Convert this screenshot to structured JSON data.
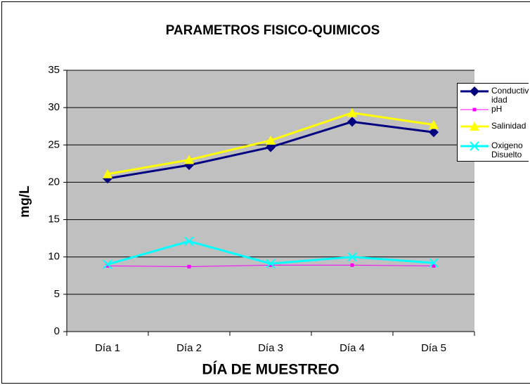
{
  "chart_data": {
    "type": "line",
    "title": "PARAMETROS FISICO-QUIMICOS",
    "x_label": "DÍA DE MUESTREO",
    "y_label": "mg/L",
    "categories": [
      "Día 1",
      "Día 2",
      "Día 3",
      "Día 4",
      "Día 5"
    ],
    "series": [
      {
        "name": "Conductividad",
        "color": "#000080",
        "marker": "diamond",
        "values": [
          20.5,
          22.3,
          24.7,
          28.1,
          26.7
        ]
      },
      {
        "name": "pH",
        "color": "#ff00ff",
        "marker": "square",
        "values": [
          8.8,
          8.7,
          8.9,
          8.9,
          8.8
        ]
      },
      {
        "name": "Salinidad",
        "color": "#ffff00",
        "marker": "triangle",
        "values": [
          21.1,
          23.0,
          25.6,
          29.3,
          27.7
        ]
      },
      {
        "name": "Oxigeno Disuelto",
        "color": "#00ffff",
        "marker": "x",
        "values": [
          9.0,
          12.1,
          9.1,
          10.0,
          9.2
        ]
      }
    ],
    "ylim": [
      0,
      35
    ],
    "yticks": [
      0,
      5,
      10,
      15,
      20,
      25,
      30,
      35
    ],
    "grid": true,
    "plot_background": "#c0c0c0",
    "legend": "right"
  }
}
